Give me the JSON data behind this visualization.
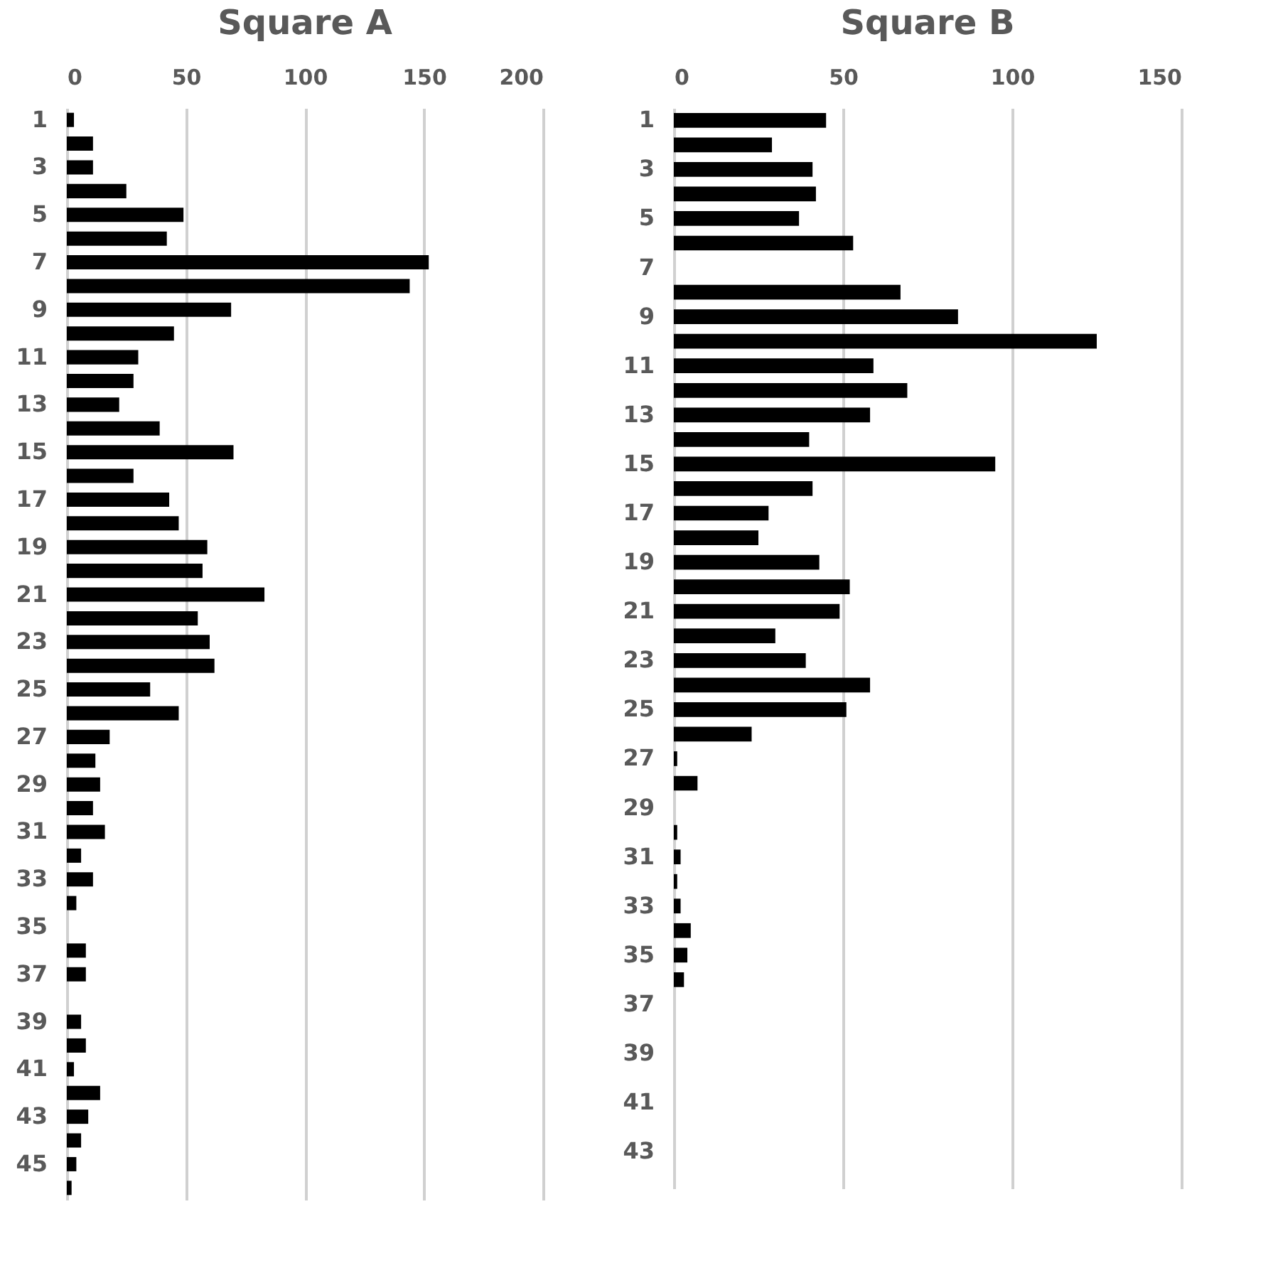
{
  "chart_data": [
    {
      "type": "bar",
      "orientation": "horizontal",
      "title": "Square A",
      "color": "#000000",
      "grid": "x",
      "categories": [
        "1",
        null,
        "3",
        null,
        "5",
        null,
        "7",
        null,
        "9",
        null,
        "11",
        null,
        "13",
        null,
        "15",
        null,
        "17",
        null,
        "19",
        null,
        "21",
        null,
        "23",
        null,
        "25",
        null,
        "27",
        null,
        "29",
        null,
        "31",
        null,
        "33",
        null,
        "35",
        null,
        "37",
        null,
        "39",
        null,
        "41",
        null,
        "43",
        null,
        "45",
        null
      ],
      "values": [
        3,
        11,
        11,
        25,
        49,
        42,
        152,
        144,
        69,
        45,
        30,
        28,
        22,
        39,
        70,
        28,
        43,
        47,
        59,
        57,
        83,
        55,
        60,
        62,
        35,
        47,
        18,
        12,
        14,
        11,
        16,
        6,
        11,
        4,
        0,
        8,
        8,
        0,
        6,
        8,
        3,
        14,
        9,
        6,
        4,
        2
      ],
      "xlim": [
        0,
        200
      ],
      "xticks": [
        0,
        50,
        100,
        150,
        200
      ]
    },
    {
      "type": "bar",
      "orientation": "horizontal",
      "title": "Square B",
      "color": "#000000",
      "grid": "x",
      "categories": [
        "1",
        null,
        "3",
        null,
        "5",
        null,
        "7",
        null,
        "9",
        null,
        "11",
        null,
        "13",
        null,
        "15",
        null,
        "17",
        null,
        "19",
        null,
        "21",
        null,
        "23",
        null,
        "25",
        null,
        "27",
        null,
        "29",
        null,
        "31",
        null,
        "33",
        null,
        "35",
        null,
        "37",
        null,
        "39",
        null,
        "41",
        null,
        "43",
        null
      ],
      "values": [
        45,
        29,
        41,
        42,
        37,
        53,
        0,
        67,
        84,
        125,
        59,
        69,
        58,
        40,
        95,
        41,
        28,
        25,
        43,
        52,
        49,
        30,
        39,
        58,
        51,
        23,
        1,
        7,
        0,
        1,
        2,
        1,
        2,
        5,
        4,
        3,
        0,
        0,
        0,
        0,
        0,
        0,
        0,
        0
      ],
      "xlim": [
        0,
        150
      ],
      "xticks": [
        0,
        50,
        100,
        150
      ]
    }
  ]
}
